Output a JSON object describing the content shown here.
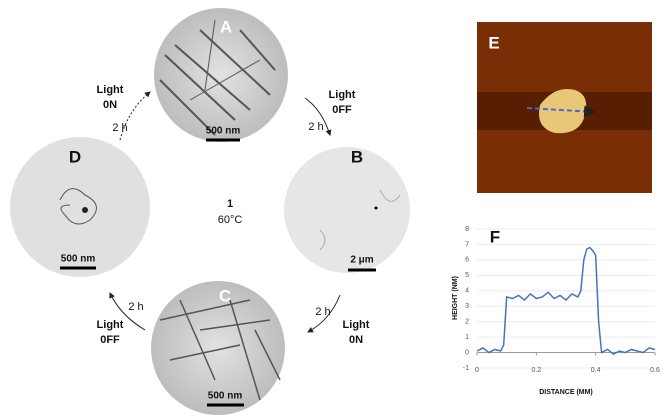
{
  "figure": {
    "panels": [
      {
        "label": "A",
        "scale_bar": "500 nm"
      },
      {
        "label": "B",
        "scale_bar": "2 μm"
      },
      {
        "label": "C",
        "scale_bar": "500 nm"
      },
      {
        "label": "D",
        "scale_bar": "500 nm"
      }
    ],
    "center": {
      "number": "1",
      "temperature": "60°C"
    },
    "arrows": [
      {
        "light": "Light",
        "state": "0FF",
        "time": "2 h"
      },
      {
        "light": "Light",
        "state": "0N",
        "time": "2 h"
      },
      {
        "light": "Light",
        "state": "0FF",
        "time": "2 h"
      },
      {
        "light": "Light",
        "state": "0N",
        "time": "2 h"
      }
    ],
    "afm_label": "E"
  },
  "chart_data": {
    "type": "line",
    "title": "F",
    "xlabel": "DISTANCE (MM)",
    "ylabel": "HEIGHT (NM)",
    "x": [
      0,
      0.02,
      0.04,
      0.06,
      0.08,
      0.09,
      0.1,
      0.12,
      0.14,
      0.16,
      0.18,
      0.2,
      0.22,
      0.24,
      0.26,
      0.28,
      0.3,
      0.32,
      0.34,
      0.35,
      0.36,
      0.37,
      0.38,
      0.39,
      0.4,
      0.41,
      0.42,
      0.44,
      0.46,
      0.48,
      0.5,
      0.52,
      0.54,
      0.56,
      0.58,
      0.6
    ],
    "series": [
      {
        "color": "#4472c4",
        "values": [
          0.1,
          0.3,
          0.0,
          0.2,
          0.1,
          0.5,
          3.6,
          3.5,
          3.7,
          3.4,
          3.8,
          3.5,
          3.6,
          3.9,
          3.5,
          3.7,
          3.4,
          3.8,
          3.6,
          4.0,
          6.0,
          6.7,
          6.8,
          6.6,
          6.3,
          2.0,
          0.0,
          0.2,
          -0.1,
          0.1,
          0.0,
          0.2,
          0.1,
          0.0,
          0.3,
          0.2
        ]
      }
    ],
    "xlim": [
      0,
      0.6
    ],
    "ylim": [
      -1,
      8
    ],
    "xticks": [
      0,
      0.2,
      0.4,
      0.6
    ],
    "yticks": [
      -1,
      0,
      1,
      2,
      3,
      4,
      5,
      6,
      7,
      8
    ],
    "grid": true
  }
}
